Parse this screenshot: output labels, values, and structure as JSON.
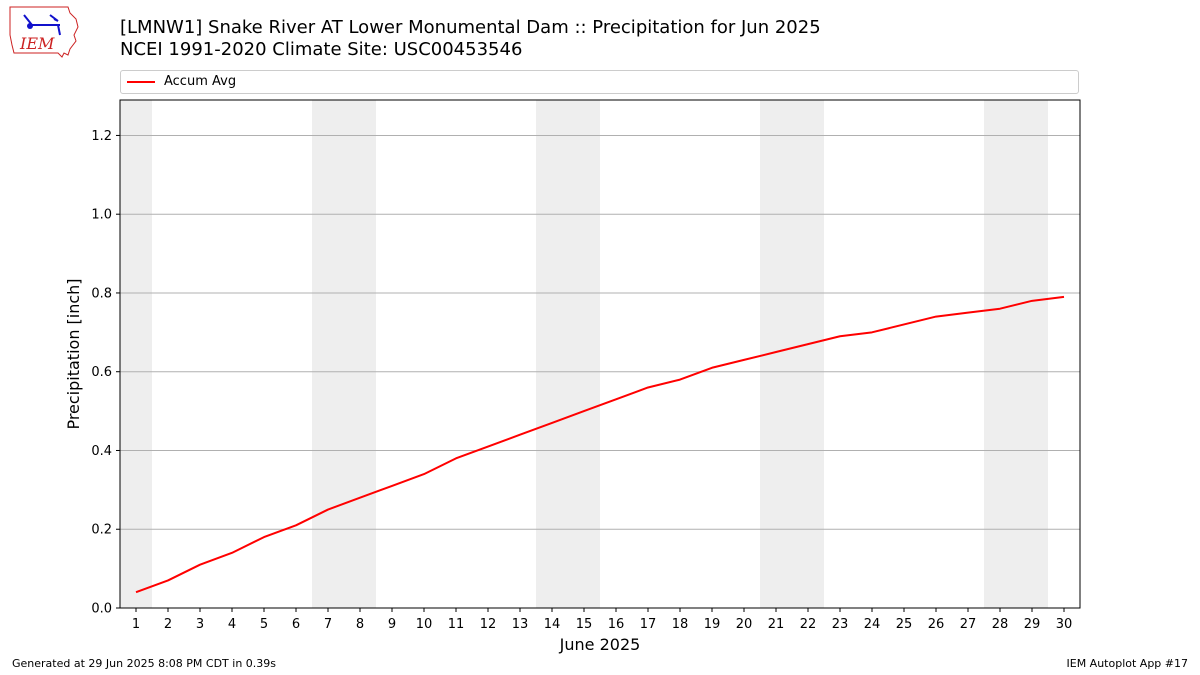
{
  "header": {
    "title_line1": "[LMNW1] Snake River  AT Lower Monumental Dam :: Precipitation for Jun 2025",
    "title_line2": "NCEI 1991-2020 Climate Site: USC00453546",
    "logo_text": "IEM"
  },
  "footer": {
    "left": "Generated at 29 Jun 2025 8:08 PM CDT in 0.39s",
    "right": "IEM Autoplot App #17"
  },
  "chart_data": {
    "type": "line",
    "xlabel": "June 2025",
    "ylabel": "Precipitation [inch]",
    "xlim": [
      0.5,
      30.5
    ],
    "ylim": [
      0,
      1.29
    ],
    "yticks": [
      0.0,
      0.2,
      0.4,
      0.6,
      0.8,
      1.0,
      1.2
    ],
    "ytick_labels": [
      "0.0",
      "0.2",
      "0.4",
      "0.6",
      "0.8",
      "1.0",
      "1.2"
    ],
    "grid": "horizontal",
    "legend_position": "top",
    "weekend_shading_days": [
      1,
      7,
      8,
      14,
      15,
      21,
      22,
      28,
      29
    ],
    "shade_color": "#eeeeee",
    "x": [
      1,
      2,
      3,
      4,
      5,
      6,
      7,
      8,
      9,
      10,
      11,
      12,
      13,
      14,
      15,
      16,
      17,
      18,
      19,
      20,
      21,
      22,
      23,
      24,
      25,
      26,
      27,
      28,
      29,
      30
    ],
    "series": [
      {
        "name": "Accum Avg",
        "color": "#ff0000",
        "values": [
          0.04,
          0.07,
          0.11,
          0.14,
          0.18,
          0.21,
          0.25,
          0.28,
          0.31,
          0.34,
          0.38,
          0.41,
          0.44,
          0.47,
          0.5,
          0.53,
          0.56,
          0.58,
          0.61,
          0.63,
          0.65,
          0.67,
          0.69,
          0.7,
          0.72,
          0.74,
          0.75,
          0.76,
          0.78,
          0.79
        ]
      }
    ]
  }
}
